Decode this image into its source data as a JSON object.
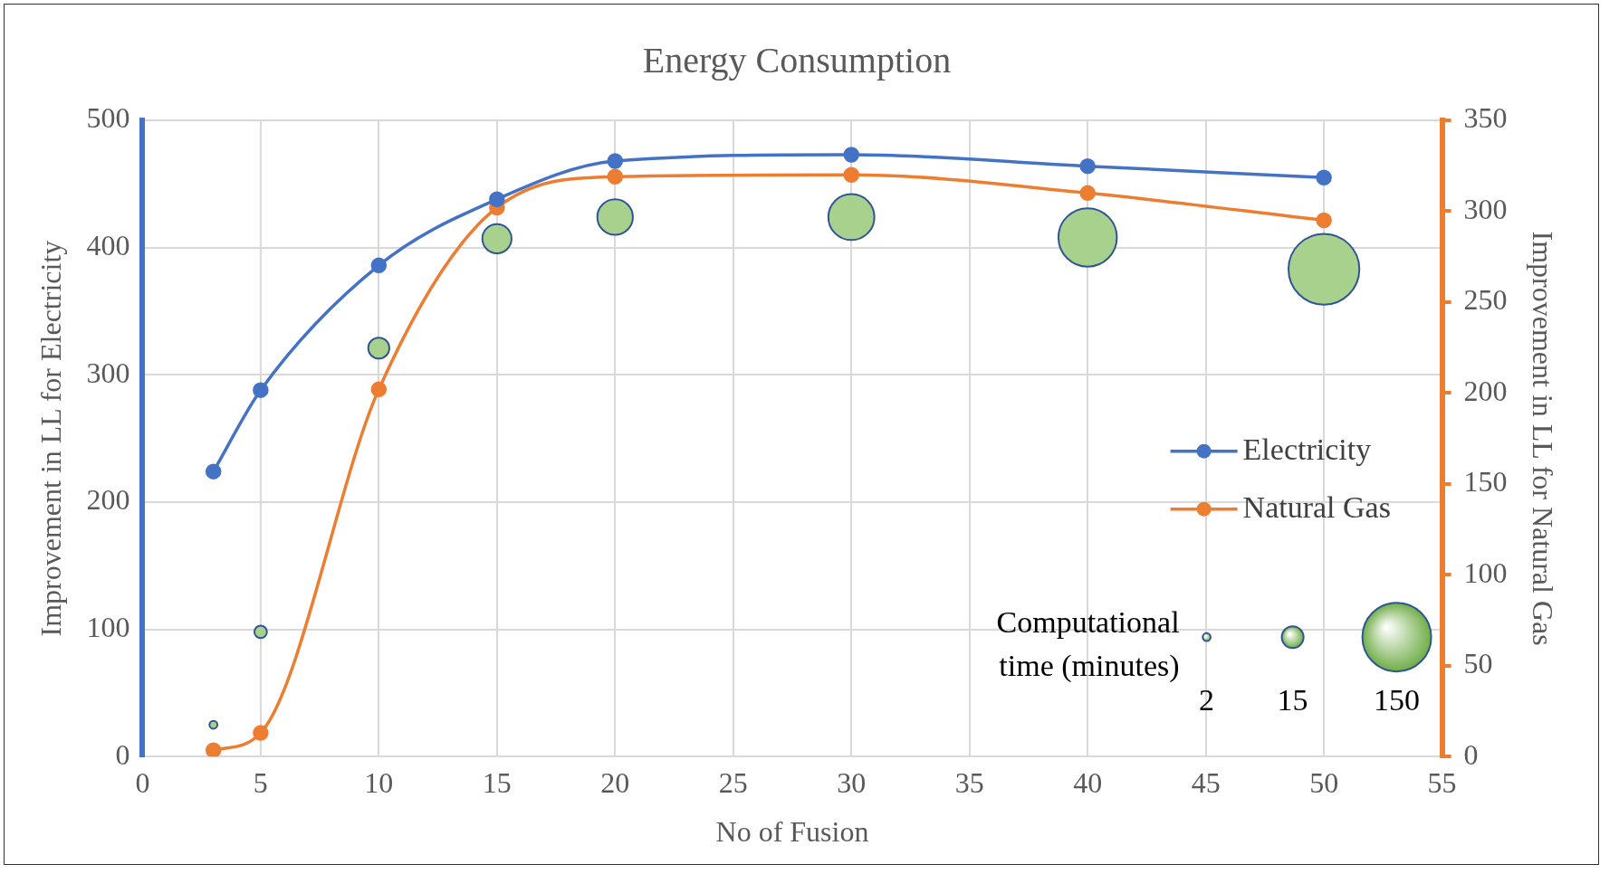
{
  "chart_data": {
    "type": "line",
    "title": "Energy Consumption",
    "xlabel": "No of Fusion",
    "ylabel": "Improvement in LL for Electricity",
    "y2label": "Improvement in LL for Natural Gas",
    "legend_title": "Computational time (minutes)",
    "x": [
      3,
      5,
      10,
      15,
      20,
      30,
      40,
      50
    ],
    "series": [
      {
        "name": "Electricity",
        "color": "#4472c4",
        "values": [
          224,
          288,
          386,
          438,
          468,
          473,
          464,
          455
        ]
      },
      {
        "name": "Natural Gas",
        "color": "#ed7d31",
        "axis": "y2",
        "values": [
          3.5,
          13,
          202,
          302,
          319,
          320,
          310,
          295
        ]
      },
      {
        "type": "bubble",
        "color": "#a9d18e",
        "values": [
          25,
          98,
          321,
          407,
          424,
          424,
          408,
          383
        ],
        "sizes": [
          2,
          5,
          14,
          27,
          40,
          67,
          108,
          159
        ]
      }
    ],
    "size_legend": [
      2,
      15,
      150
    ],
    "xlim": [
      0,
      55
    ],
    "xticks": [
      0,
      5,
      10,
      15,
      20,
      25,
      30,
      35,
      40,
      45,
      50,
      55
    ],
    "ylim": [
      0,
      500
    ],
    "yticks": [
      0,
      100,
      200,
      300,
      400,
      500
    ],
    "y2lim": [
      0,
      350
    ],
    "y2ticks": [
      0,
      50,
      100,
      150,
      200,
      250,
      300,
      350
    ],
    "grid": true,
    "legend": "right",
    "marker": "circle",
    "line_style": "solid"
  }
}
